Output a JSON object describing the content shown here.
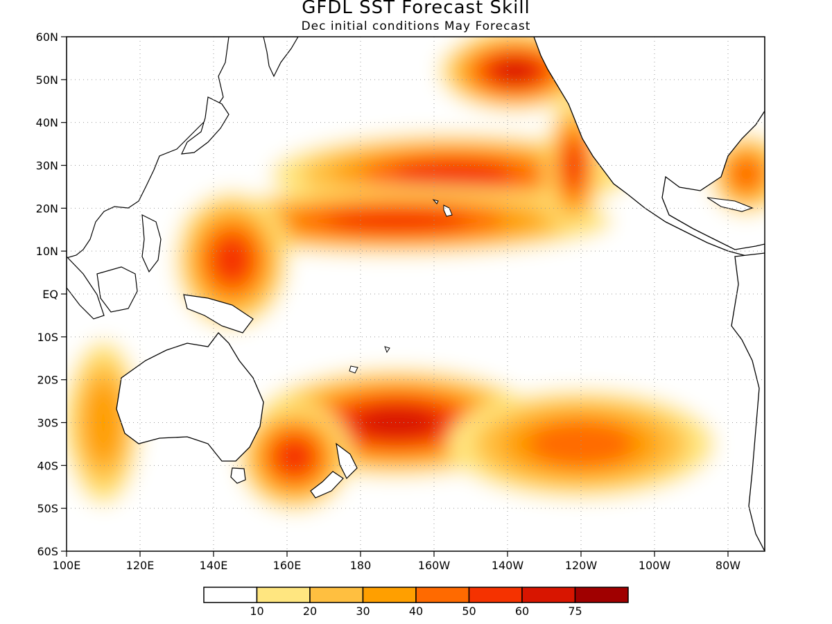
{
  "title": "GFDL SST Forecast Skill",
  "subtitle": "Dec initial conditions   May Forecast",
  "map": {
    "lon_range": [
      100,
      290
    ],
    "lat_range": [
      -60,
      60
    ],
    "grid": true,
    "lat_ticks": [
      {
        "value": 60,
        "label": "60N"
      },
      {
        "value": 50,
        "label": "50N"
      },
      {
        "value": 40,
        "label": "40N"
      },
      {
        "value": 30,
        "label": "30N"
      },
      {
        "value": 20,
        "label": "20N"
      },
      {
        "value": 10,
        "label": "10N"
      },
      {
        "value": 0,
        "label": "EQ"
      },
      {
        "value": -10,
        "label": "10S"
      },
      {
        "value": -20,
        "label": "20S"
      },
      {
        "value": -30,
        "label": "30S"
      },
      {
        "value": -40,
        "label": "40S"
      },
      {
        "value": -50,
        "label": "50S"
      },
      {
        "value": -60,
        "label": "60S"
      }
    ],
    "lon_ticks": [
      {
        "value": 100,
        "label": "100E"
      },
      {
        "value": 120,
        "label": "120E"
      },
      {
        "value": 140,
        "label": "140E"
      },
      {
        "value": 160,
        "label": "160E"
      },
      {
        "value": 180,
        "label": "180"
      },
      {
        "value": 200,
        "label": "160W"
      },
      {
        "value": 220,
        "label": "140W"
      },
      {
        "value": 240,
        "label": "120W"
      },
      {
        "value": 260,
        "label": "100W"
      },
      {
        "value": 280,
        "label": "80W"
      }
    ]
  },
  "colorbar": {
    "bins": [
      {
        "color": "#ffffff",
        "label": ""
      },
      {
        "color": "#ffe680",
        "label": "10"
      },
      {
        "color": "#ffbf40",
        "label": "20"
      },
      {
        "color": "#ff9f00",
        "label": "30"
      },
      {
        "color": "#ff6a00",
        "label": "40"
      },
      {
        "color": "#f53200",
        "label": "50"
      },
      {
        "color": "#d81500",
        "label": "60"
      },
      {
        "color": "#a00000",
        "label": "75"
      }
    ]
  },
  "skill_regions": [
    {
      "name": "north-pacific-band",
      "level": 5,
      "lon": 205,
      "lat": 28,
      "rlon": 38,
      "rlat": 6
    },
    {
      "name": "gulf-of-alaska",
      "level": 6,
      "lon": 222,
      "lat": 52,
      "rlon": 16,
      "rlat": 6
    },
    {
      "name": "subtropical-north",
      "level": 5,
      "lon": 190,
      "lat": 17,
      "rlon": 45,
      "rlat": 5
    },
    {
      "name": "west-pacific-warm-pool",
      "level": 5,
      "lon": 145,
      "lat": 8,
      "rlon": 12,
      "rlat": 10
    },
    {
      "name": "south-pacific-convergence",
      "level": 6,
      "lon": 190,
      "lat": -30,
      "rlon": 30,
      "rlat": 8
    },
    {
      "name": "tasman-sea",
      "level": 5,
      "lon": 162,
      "lat": -38,
      "rlon": 12,
      "rlat": 8
    },
    {
      "name": "southeast-pacific",
      "level": 4,
      "lon": 240,
      "lat": -35,
      "rlon": 28,
      "rlat": 8
    },
    {
      "name": "california-current",
      "level": 5,
      "lon": 238,
      "lat": 30,
      "rlon": 6,
      "rlat": 10
    },
    {
      "name": "caribbean",
      "level": 4,
      "lon": 285,
      "lat": 28,
      "rlon": 8,
      "rlat": 6
    },
    {
      "name": "indian-ocean-east",
      "level": 3,
      "lon": 110,
      "lat": -30,
      "rlon": 8,
      "rlat": 12
    }
  ]
}
